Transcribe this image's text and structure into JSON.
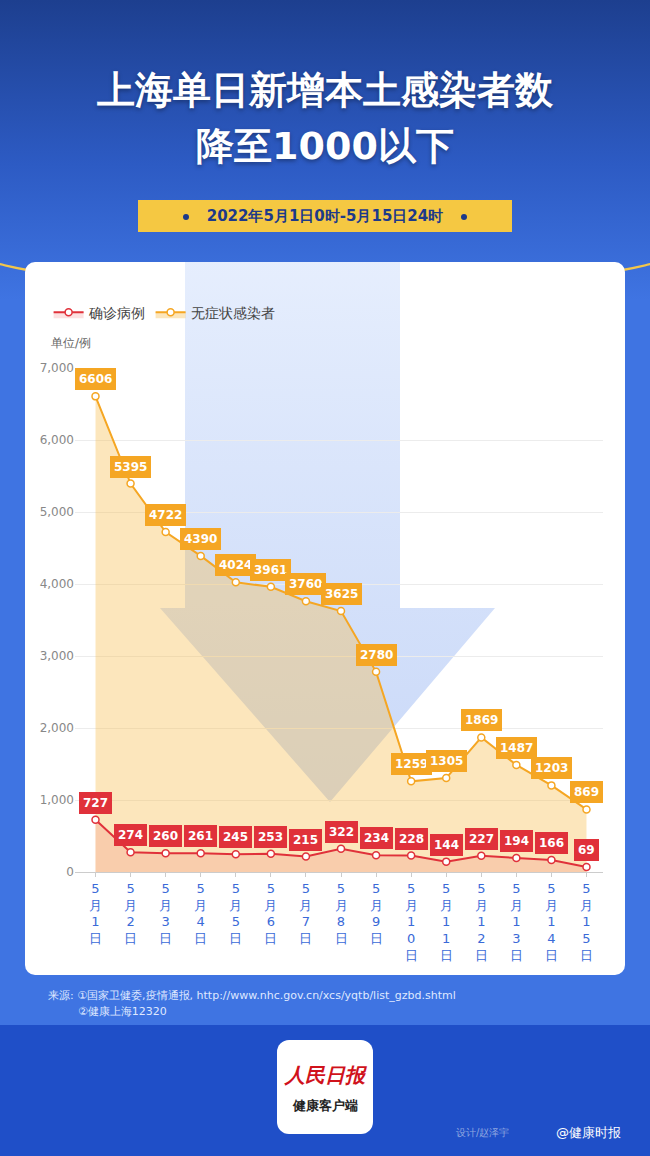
{
  "chart_data": {
    "type": "line",
    "title": [
      "上海单日新增本土感染者数",
      "降至1000以下"
    ],
    "subtitle": "2022年5月1日0时-5月15日24时",
    "y_label": "单位/例",
    "categories": [
      "5月1日",
      "5月2日",
      "5月3日",
      "5月4日",
      "5月5日",
      "5月6日",
      "5月7日",
      "5月8日",
      "5月9日",
      "5月10日",
      "5月11日",
      "5月12日",
      "5月13日",
      "5月14日",
      "5月15日"
    ],
    "series": [
      {
        "name": "确诊病例",
        "color": "#e0313a",
        "values": [
          727,
          274,
          260,
          261,
          245,
          253,
          215,
          322,
          234,
          228,
          144,
          227,
          194,
          166,
          69
        ]
      },
      {
        "name": "无症状感染者",
        "color": "#f5a623",
        "values": [
          6606,
          5395,
          4722,
          4390,
          4024,
          3961,
          3760,
          3625,
          2780,
          1259,
          1305,
          1869,
          1487,
          1203,
          869
        ]
      }
    ],
    "ylim": [
      0,
      7000
    ],
    "yticks": [
      0,
      {
        "value": 1000,
        "label": "1,000"
      },
      {
        "value": 2000,
        "label": "2,000"
      },
      {
        "value": 3000,
        "label": "3,000"
      },
      {
        "value": 4000,
        "label": "4,000"
      },
      {
        "value": 5000,
        "label": "5,000"
      },
      {
        "value": 6000,
        "label": "6,000"
      },
      {
        "value": 7000,
        "label": "7,000"
      }
    ],
    "grid": true,
    "legend": "top-left",
    "data_labels": true,
    "marker": "circle"
  },
  "page": {
    "source": [
      "来源: ①国家卫健委,疫情通报, http://www.nhc.gov.cn/xcs/yqtb/list_gzbd.shtml",
      "②健康上海12320"
    ],
    "logo": [
      "人民日报",
      "健康客户端"
    ],
    "designer": "设计/赵泽宇",
    "weibo": "@健康时报"
  }
}
